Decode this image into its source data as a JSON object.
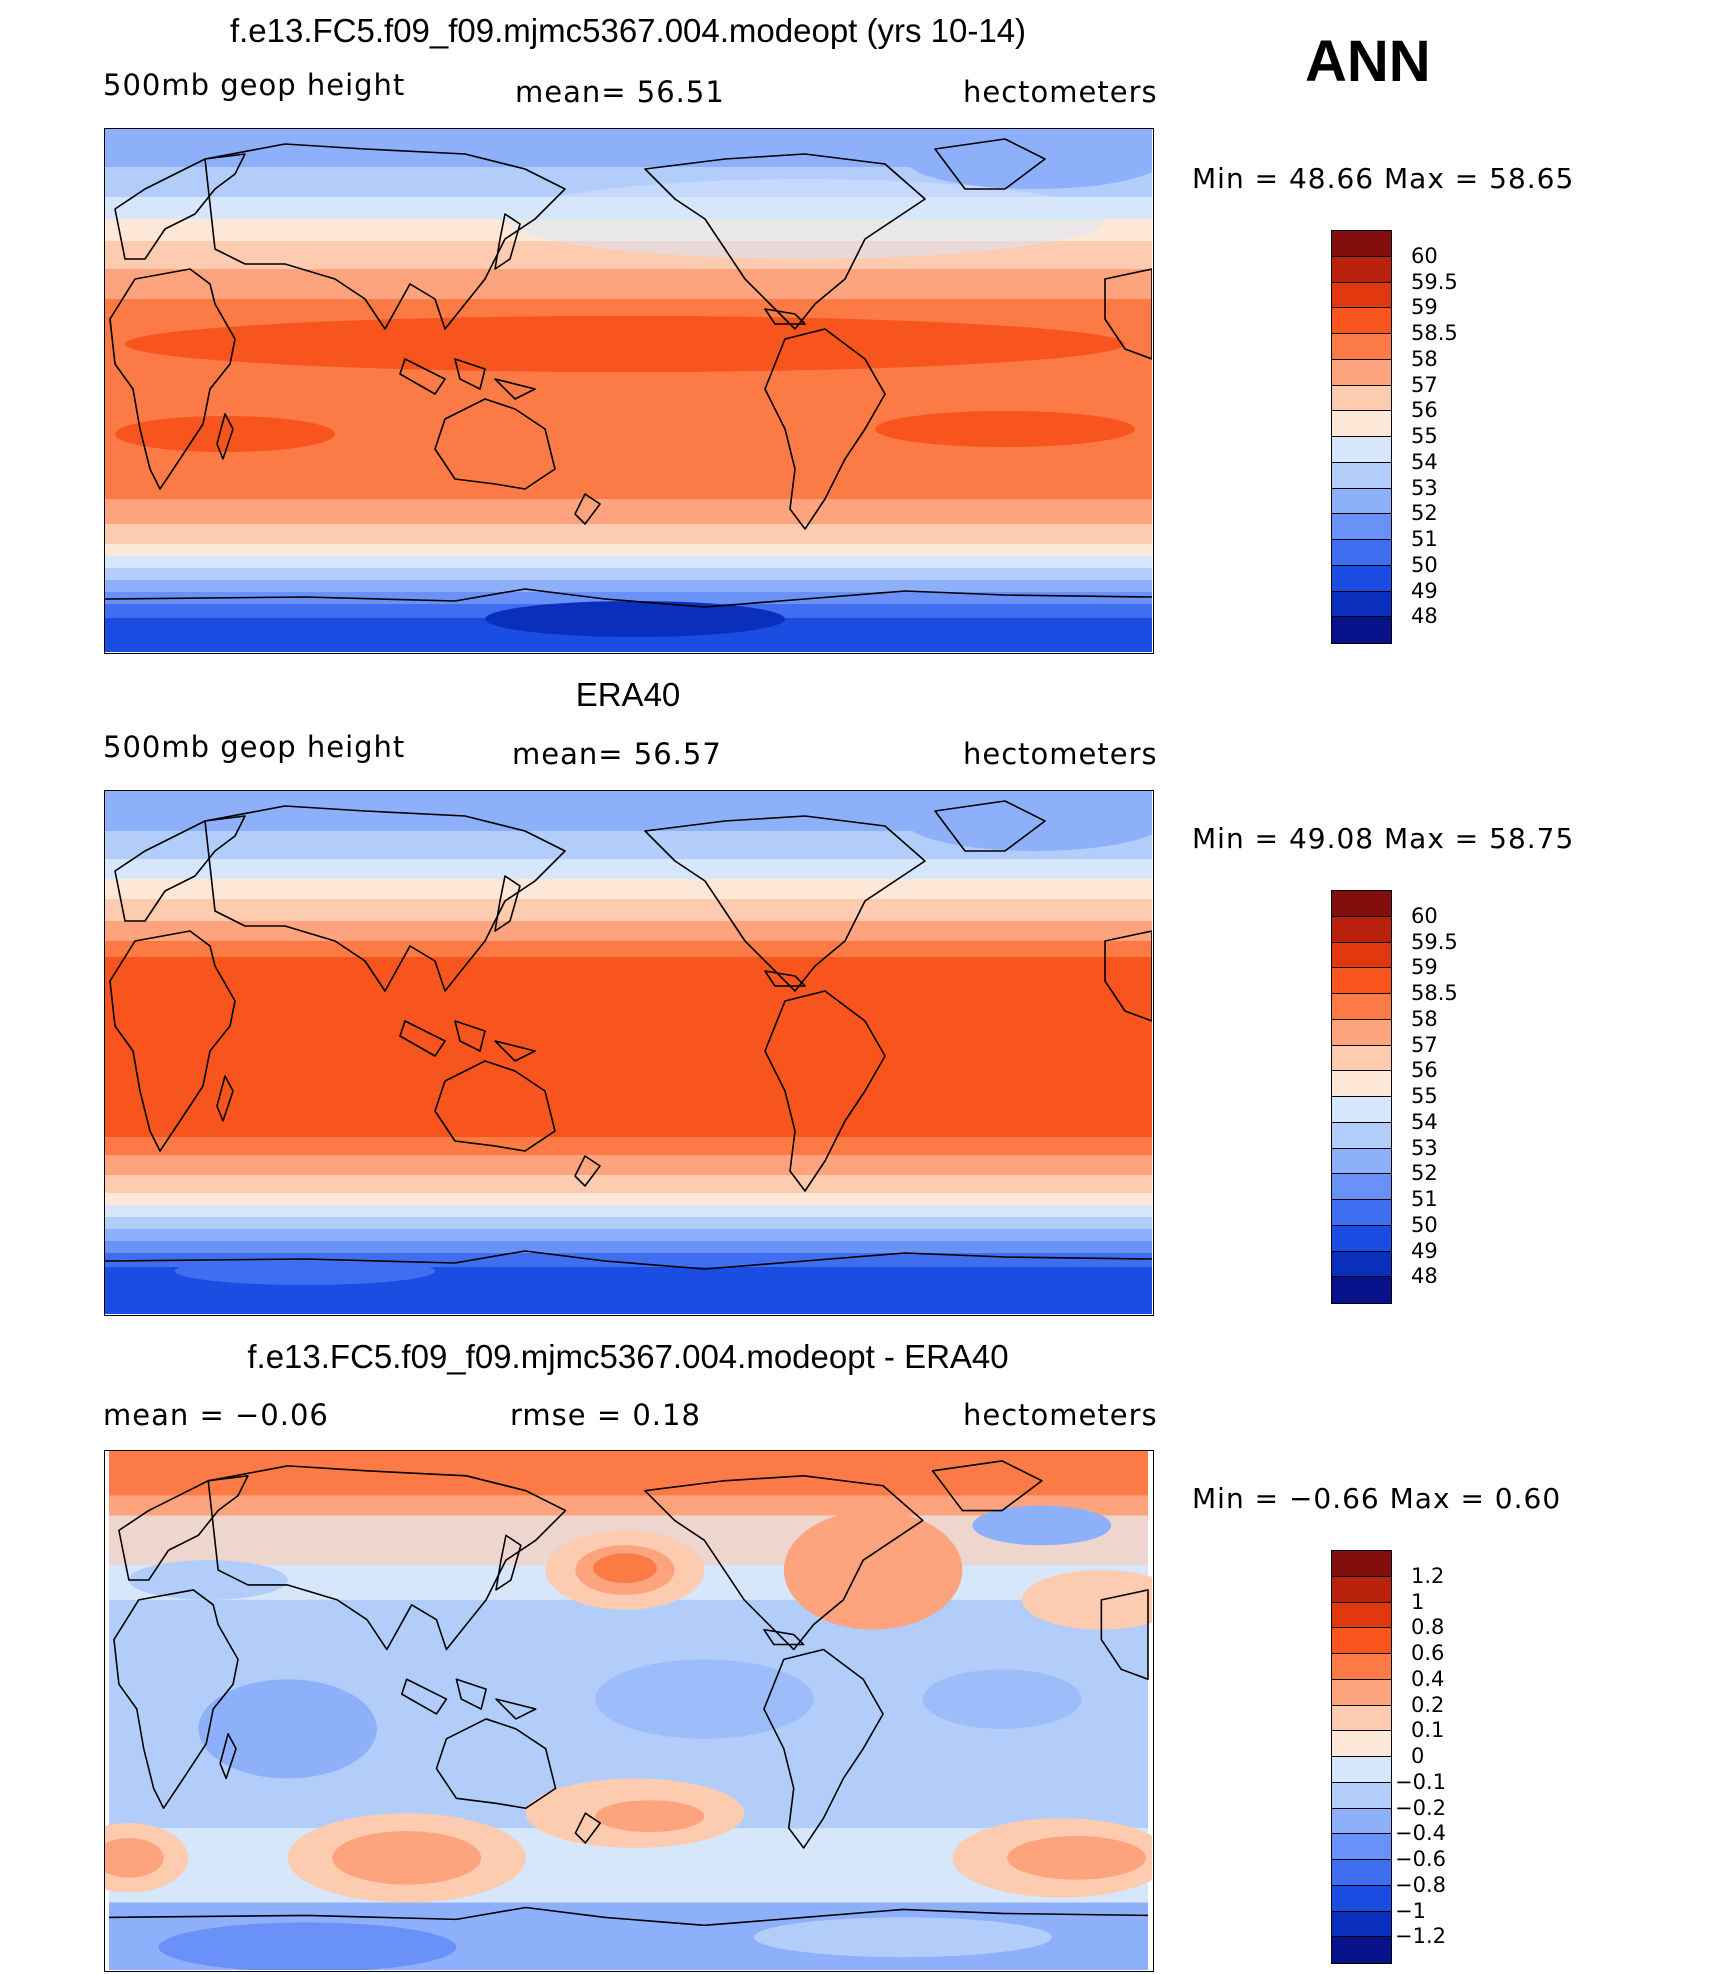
{
  "season": "ANN",
  "panels": [
    {
      "title": "f.e13.FC5.f09_f09.mjmc5367.004.modeopt (yrs 10-14)",
      "left_label": "500mb geop height",
      "center_label": "mean=   56.51",
      "right_label": "hectometers",
      "minmax": "Min =   48.66  Max =   58.65",
      "colorbar_labels": [
        "60",
        "59.5",
        "59",
        "58.5",
        "58",
        "57",
        "56",
        "55",
        "54",
        "53",
        "52",
        "51",
        "50",
        "49",
        "48"
      ],
      "colorbar_colors": [
        "#830e0e",
        "#b8210c",
        "#e2380f",
        "#f8541e",
        "#fb7a45",
        "#fda47e",
        "#fdcbb0",
        "#fde8d8",
        "#d6e6fb",
        "#b3cdfb",
        "#8eb0fa",
        "#6a91f7",
        "#3f6ff0",
        "#1b4de2",
        "#0a2fbd",
        "#06118a"
      ]
    },
    {
      "title": "ERA40",
      "left_label": "500mb geop height",
      "center_label": "mean=   56.57",
      "right_label": "hectometers",
      "minmax": "Min =   49.08  Max =   58.75",
      "colorbar_labels": [
        "60",
        "59.5",
        "59",
        "58.5",
        "58",
        "57",
        "56",
        "55",
        "54",
        "53",
        "52",
        "51",
        "50",
        "49",
        "48"
      ],
      "colorbar_colors": [
        "#830e0e",
        "#b8210c",
        "#e2380f",
        "#f8541e",
        "#fb7a45",
        "#fda47e",
        "#fdcbb0",
        "#fde8d8",
        "#d6e6fb",
        "#b3cdfb",
        "#8eb0fa",
        "#6a91f7",
        "#3f6ff0",
        "#1b4de2",
        "#0a2fbd",
        "#06118a"
      ]
    },
    {
      "title": "f.e13.FC5.f09_f09.mjmc5367.004.modeopt - ERA40",
      "left_label": "mean =   −0.06",
      "center_label": "rmse =    0.18",
      "right_label": "hectometers",
      "minmax": "Min =   −0.66  Max =    0.60",
      "colorbar_labels": [
        "1.2",
        "1",
        "0.8",
        "0.6",
        "0.4",
        "0.2",
        "0.1",
        "0",
        "−0.1",
        "−0.2",
        "−0.4",
        "−0.6",
        "−0.8",
        "−1",
        "−1.2"
      ],
      "colorbar_colors": [
        "#830e0e",
        "#b8210c",
        "#e2380f",
        "#f8541e",
        "#fb7a45",
        "#fda47e",
        "#fdcbb0",
        "#fde8d8",
        "#d6e6fb",
        "#b3cdfb",
        "#8eb0fa",
        "#6a91f7",
        "#3f6ff0",
        "#1b4de2",
        "#0a2fbd",
        "#06118a"
      ]
    }
  ]
}
